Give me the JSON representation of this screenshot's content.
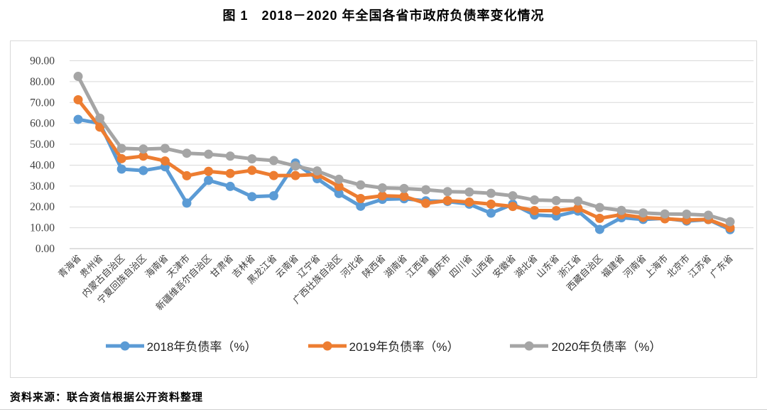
{
  "page": {
    "title": "图 1　2018－2020 年全国各省市政府负债率变化情况",
    "source": "资料来源：联合资信根据公开资料整理"
  },
  "chart_data": {
    "type": "line",
    "title": "图 1　2018－2020 年全国各省市政府负债率变化情况",
    "categories": [
      "青海省",
      "贵州省",
      "内蒙古自治区",
      "宁夏回族自治区",
      "海南省",
      "天津市",
      "新疆维吾尔自治区",
      "甘肃省",
      "吉林省",
      "黑龙江省",
      "云南省",
      "辽宁省",
      "广西壮族自治区",
      "河北省",
      "陕西省",
      "湖南省",
      "江西省",
      "重庆市",
      "四川省",
      "山西省",
      "安徽省",
      "湖北省",
      "山东省",
      "浙江省",
      "西藏自治区",
      "福建省",
      "河南省",
      "上海市",
      "北京市",
      "江苏省",
      "广东省"
    ],
    "series": [
      {
        "name": "2018年负债率（%）",
        "color": "#5B9BD5",
        "values": [
          61.9,
          60.0,
          38.1,
          37.4,
          39.2,
          21.8,
          32.7,
          29.8,
          24.9,
          25.3,
          41.0,
          33.5,
          26.4,
          20.3,
          23.6,
          23.9,
          22.9,
          22.6,
          21.3,
          17.0,
          21.3,
          16.1,
          15.6,
          18.0,
          9.2,
          14.8,
          14.0,
          14.5,
          13.2,
          13.9,
          9.1
        ]
      },
      {
        "name": "2019年负债率（%）",
        "color": "#ED7D31",
        "values": [
          71.3,
          58.2,
          43.1,
          44.3,
          42.0,
          34.9,
          37.0,
          36.0,
          37.5,
          35.0,
          35.0,
          35.5,
          29.8,
          24.0,
          25.3,
          25.0,
          21.7,
          23.0,
          22.3,
          21.3,
          20.2,
          18.2,
          18.2,
          19.3,
          14.5,
          16.3,
          14.9,
          14.3,
          13.7,
          14.0,
          10.0
        ]
      },
      {
        "name": "2020年负债率（%）",
        "color": "#A5A5A5",
        "values": [
          82.5,
          62.5,
          48.0,
          47.7,
          48.0,
          45.7,
          45.2,
          44.3,
          43.0,
          42.2,
          39.6,
          37.2,
          33.2,
          30.5,
          29.1,
          28.8,
          28.2,
          27.3,
          27.1,
          26.5,
          25.3,
          23.3,
          23.0,
          22.8,
          19.7,
          18.3,
          17.1,
          16.6,
          16.5,
          16.0,
          12.9
        ]
      }
    ],
    "ylim": [
      0,
      90
    ],
    "ytick_step": 10,
    "ytick_decimals": 2,
    "grid": true,
    "legend_position": "bottom",
    "x_label_rotation": -45,
    "colors": {
      "gridline": "#d9d9d9",
      "axis_line": "#bfbfbf",
      "tick_text": "#404040",
      "frame_border": "#d9d9d9"
    }
  }
}
